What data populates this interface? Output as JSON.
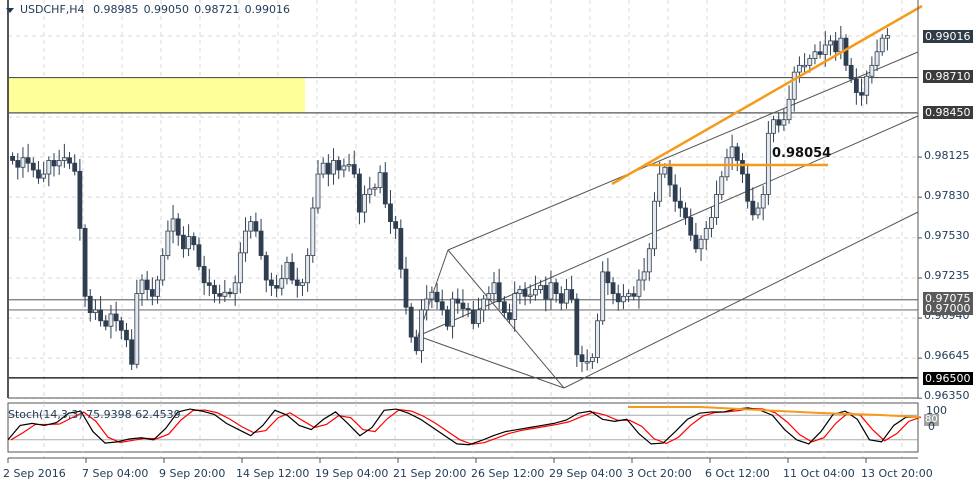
{
  "header": {
    "symbol": "USDCHF,H4",
    "open": "0.98985",
    "high": "0.99050",
    "low": "0.98721",
    "close": "0.99016"
  },
  "price_axis": {
    "ticks": [
      "0.98125",
      "0.97830",
      "0.97530",
      "0.97235",
      "0.96940",
      "0.96645",
      "0.96350"
    ],
    "boxed": [
      {
        "label": "0.99016",
        "color": "#2f3b46"
      },
      {
        "label": "0.98710",
        "color": "#3b3b3b"
      },
      {
        "label": "0.98450",
        "color": "#3b3b3b"
      },
      {
        "label": "0.97075",
        "color": "#5a5a5a"
      },
      {
        "label": "0.97000",
        "color": "#5a5a5a"
      },
      {
        "label": "0.96500",
        "color": "#000000"
      }
    ]
  },
  "time_axis": [
    "2 Sep 2016",
    "7 Sep 04:00",
    "9 Sep 20:00",
    "14 Sep 12:00",
    "19 Sep 04:00",
    "21 Sep 20:00",
    "26 Sep 12:00",
    "29 Sep 04:00",
    "3 Oct 20:00",
    "6 Oct 12:00",
    "11 Oct 04:00",
    "13 Oct 20:00"
  ],
  "annotation": {
    "label": "0.98054",
    "color": "#f59a1b"
  },
  "zone": {
    "color": "#ffff99",
    "from": "0.98450",
    "to": "0.98710"
  },
  "stochastic": {
    "title": "Stoch(14,3,3) 75.9398 62.4539",
    "main_color": "#000000",
    "signal_color": "#ff0000",
    "levels": [
      "80",
      "20"
    ],
    "scale_top": "100",
    "scale_bottom": "0"
  },
  "colors": {
    "bull_body": "#e6e9ed",
    "bear_body": "#2e3e50",
    "wick": "#2e3e50",
    "trendline": "#f59a1b",
    "channel": "#555555",
    "grid": "#d8d8d8"
  },
  "chart_data": {
    "type": "candlestick",
    "title": "USDCHF,H4",
    "xlabel": "",
    "ylabel": "",
    "ylim": [
      0.963,
      0.9935
    ],
    "x_ticks": [
      "2 Sep 2016",
      "7 Sep 04:00",
      "9 Sep 20:00",
      "14 Sep 12:00",
      "19 Sep 04:00",
      "21 Sep 20:00",
      "26 Sep 12:00",
      "29 Sep 04:00",
      "3 Oct 20:00",
      "6 Oct 12:00",
      "11 Oct 04:00",
      "13 Oct 20:00"
    ],
    "y_ticks": [
      0.99016,
      0.9871,
      0.9845,
      0.98125,
      0.9783,
      0.9753,
      0.97235,
      0.97075,
      0.97,
      0.9694,
      0.96645,
      0.965,
      0.9635
    ],
    "last_ohlc": {
      "open": 0.98985,
      "high": 0.9905,
      "low": 0.98721,
      "close": 0.99016
    },
    "horizontal_levels": [
      0.9871,
      0.9845,
      0.97075,
      0.97,
      0.965
    ],
    "annotated_level": 0.98054,
    "resistance_zone": [
      0.9845,
      0.9871
    ],
    "candles_close_approx": [
      0.981,
      0.9805,
      0.9812,
      0.9808,
      0.9803,
      0.9797,
      0.98,
      0.981,
      0.9806,
      0.981,
      0.9812,
      0.9808,
      0.9802,
      0.976,
      0.971,
      0.9698,
      0.97,
      0.9692,
      0.9688,
      0.9697,
      0.9692,
      0.9685,
      0.9678,
      0.966,
      0.9712,
      0.9722,
      0.9715,
      0.971,
      0.9722,
      0.974,
      0.9758,
      0.9767,
      0.9755,
      0.9745,
      0.9754,
      0.9748,
      0.9732,
      0.972,
      0.9718,
      0.9712,
      0.971,
      0.9713,
      0.9712,
      0.972,
      0.9742,
      0.9758,
      0.9765,
      0.9758,
      0.974,
      0.9722,
      0.9718,
      0.9716,
      0.9723,
      0.9735,
      0.9722,
      0.9718,
      0.972,
      0.974,
      0.9775,
      0.98,
      0.9808,
      0.98,
      0.981,
      0.9803,
      0.9806,
      0.9807,
      0.98,
      0.9772,
      0.9785,
      0.9789,
      0.979,
      0.9801,
      0.9778,
      0.9765,
      0.976,
      0.973,
      0.9702,
      0.968,
      0.967,
      0.97,
      0.9708,
      0.9713,
      0.9706,
      0.97,
      0.9688,
      0.9708,
      0.9705,
      0.9701,
      0.97,
      0.969,
      0.97,
      0.9708,
      0.9712,
      0.972,
      0.9706,
      0.9698,
      0.9693,
      0.9712,
      0.9715,
      0.971,
      0.9711,
      0.9715,
      0.9718,
      0.9708,
      0.972,
      0.9712,
      0.9705,
      0.9715,
      0.9708,
      0.9667,
      0.9662,
      0.9662,
      0.9665,
      0.9692,
      0.9728,
      0.972,
      0.9712,
      0.9706,
      0.971,
      0.9712,
      0.971,
      0.9722,
      0.9728,
      0.9745,
      0.978,
      0.98,
      0.9805,
      0.9792,
      0.978,
      0.9775,
      0.9768,
      0.9755,
      0.9745,
      0.9752,
      0.976,
      0.9768,
      0.9785,
      0.9798,
      0.9812,
      0.982,
      0.981,
      0.98,
      0.978,
      0.977,
      0.9775,
      0.9785,
      0.983,
      0.984,
      0.9836,
      0.984,
      0.9855,
      0.9875,
      0.988,
      0.988,
      0.9885,
      0.989,
      0.9888,
      0.9895,
      0.9898,
      0.989,
      0.99,
      0.988,
      0.987,
      0.986,
      0.9858,
      0.9872,
      0.988,
      0.989,
      0.99,
      0.9902
    ]
  }
}
